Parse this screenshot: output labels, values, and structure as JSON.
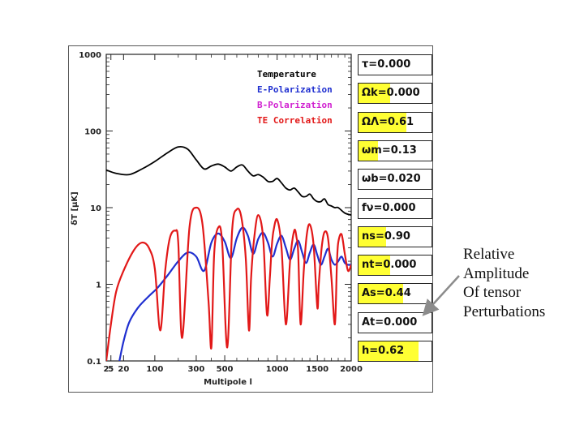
{
  "chart_data": {
    "type": "line",
    "title": "",
    "xlabel": "Multipole l",
    "ylabel": "δT [μK]",
    "x_scale": "sqrt",
    "y_scale": "log",
    "xlim": [
      2,
      2000
    ],
    "ylim": [
      0.1,
      1000
    ],
    "x_ticks": [
      2,
      5,
      20,
      100,
      300,
      500,
      1000,
      1500,
      2000
    ],
    "x_tick_labels": [
      "2",
      "5",
      "20",
      "100",
      "300",
      "500",
      "1000",
      "1500",
      "2000"
    ],
    "y_ticks": [
      0.1,
      1,
      10,
      100,
      1000
    ],
    "y_tick_labels": [
      "0.1",
      "1",
      "10",
      "100",
      "1000"
    ],
    "series": [
      {
        "name": "Temperature",
        "color": "#000000",
        "x": [
          2,
          10,
          30,
          60,
          100,
          150,
          200,
          250,
          300,
          350,
          400,
          450,
          500,
          550,
          600,
          650,
          700,
          750,
          800,
          850,
          900,
          950,
          1000,
          1050,
          1100,
          1150,
          1200,
          1250,
          1300,
          1350,
          1400,
          1450,
          1500,
          1550,
          1600,
          1650,
          1700,
          1750,
          1800,
          1900,
          2000
        ],
        "y": [
          31,
          28,
          27,
          32,
          40,
          52,
          62,
          58,
          42,
          32,
          35,
          37,
          34,
          30,
          34,
          36,
          30,
          26,
          27,
          25,
          22,
          22,
          24,
          21,
          18,
          17,
          18,
          16,
          14,
          14,
          15,
          13,
          12,
          12,
          13,
          11,
          10.5,
          10,
          10,
          8.5,
          8
        ]
      },
      {
        "name": "E-Polarization",
        "color": "#1f2fd0",
        "x": [
          14,
          20,
          30,
          50,
          80,
          110,
          150,
          200,
          250,
          300,
          350,
          400,
          450,
          500,
          550,
          600,
          650,
          700,
          750,
          800,
          850,
          900,
          950,
          1000,
          1050,
          1100,
          1150,
          1200,
          1250,
          1300,
          1350,
          1400,
          1450,
          1500,
          1550,
          1600,
          1650,
          1700,
          1750,
          1800,
          1850,
          1900,
          1950,
          2000
        ],
        "y": [
          0.1,
          0.18,
          0.32,
          0.5,
          0.7,
          0.9,
          1.3,
          2.0,
          2.6,
          2.3,
          1.5,
          3.5,
          4.6,
          3.6,
          2.2,
          4.0,
          5.5,
          4.3,
          2.5,
          3.9,
          4.7,
          3.5,
          2.3,
          3.4,
          4.3,
          3.0,
          2.1,
          2.9,
          3.7,
          2.6,
          1.9,
          2.6,
          3.3,
          2.4,
          1.8,
          2.3,
          2.9,
          2.1,
          1.8,
          2.0,
          2.3,
          1.9,
          1.8,
          1.8
        ]
      },
      {
        "name": "B-Polarization",
        "color": "#d020d0",
        "x": [],
        "y": []
      },
      {
        "name": "TE Correlation",
        "color": "#e21818",
        "x": [
          2,
          5,
          10,
          20,
          40,
          60,
          80,
          100,
          120,
          140,
          160,
          185,
          200,
          220,
          260,
          300,
          340,
          380,
          400,
          420,
          450,
          480,
          520,
          560,
          600,
          640,
          680,
          710,
          730,
          760,
          800,
          850,
          890,
          920,
          940,
          960,
          1000,
          1050,
          1100,
          1150,
          1200,
          1230,
          1250,
          1280,
          1320,
          1360,
          1400,
          1450,
          1500,
          1520,
          1560,
          1600,
          1650,
          1700,
          1750,
          1780,
          1800,
          1850,
          1900,
          1950,
          2000
        ],
        "y": [
          0.1,
          0.3,
          0.8,
          1.5,
          2.8,
          3.5,
          3.0,
          1.6,
          0.25,
          1.5,
          4.0,
          5.0,
          3.5,
          0.2,
          5.5,
          10.0,
          6.0,
          0.6,
          0.15,
          2.5,
          5.5,
          3.5,
          0.15,
          5.0,
          9.5,
          7.5,
          2.2,
          0.25,
          1.2,
          4.0,
          8.0,
          4.0,
          0.4,
          1.2,
          3.0,
          5.0,
          7.0,
          3.0,
          0.3,
          2.0,
          5.0,
          4.0,
          2.5,
          0.3,
          1.5,
          4.5,
          6.0,
          3.2,
          0.5,
          1.0,
          3.0,
          4.8,
          4.0,
          1.2,
          0.3,
          1.8,
          3.5,
          4.5,
          2.5,
          1.5,
          1.8
        ]
      }
    ],
    "legend_position": "top-right"
  },
  "parameters": [
    {
      "label": "τ=0.000",
      "fill_fraction": 0.0
    },
    {
      "label": "Ωk=0.000",
      "fill_fraction": 0.43
    },
    {
      "label": "ΩΛ=0.61",
      "fill_fraction": 0.65
    },
    {
      "label": "ωm=0.13",
      "fill_fraction": 0.27
    },
    {
      "label": "ωb=0.020",
      "fill_fraction": 0.0
    },
    {
      "label": "fν=0.000",
      "fill_fraction": 0.0
    },
    {
      "label": "ns=0.90",
      "fill_fraction": 0.38
    },
    {
      "label": "nt=0.000",
      "fill_fraction": 0.43
    },
    {
      "label": "As=0.44",
      "fill_fraction": 0.61
    },
    {
      "label": "At=0.000",
      "fill_fraction": 0.0
    },
    {
      "label": "h=0.62",
      "fill_fraction": 0.82
    }
  ],
  "annotation": {
    "lines": [
      "Relative",
      "Amplitude",
      "Of tensor",
      "Perturbations"
    ],
    "arrow_color": "#8c8c8c"
  },
  "colors": {
    "highlight": "#ffff33",
    "frame": "#555555"
  }
}
